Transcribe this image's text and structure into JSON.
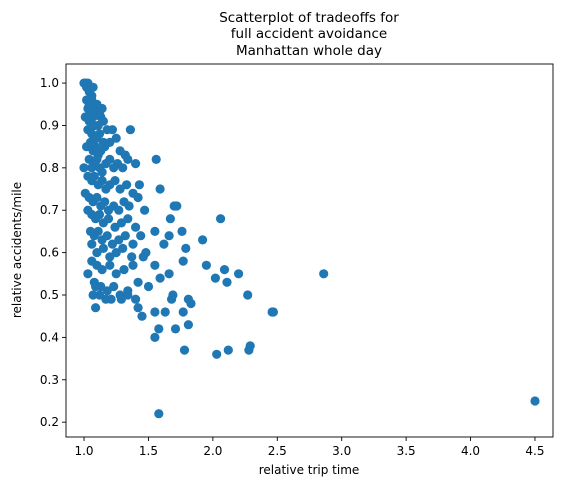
{
  "chart_data": {
    "type": "scatter",
    "title_lines": [
      "Scatterplot of tradeoffs for",
      "full accident avoidance",
      "Manhattan whole day"
    ],
    "xlabel": "relative trip time",
    "ylabel": "relative accidents/mile",
    "xlim": [
      0.86,
      4.64
    ],
    "ylim": [
      0.165,
      1.045
    ],
    "xticks": [
      1.0,
      1.5,
      2.0,
      2.5,
      3.0,
      3.5,
      4.0,
      4.5
    ],
    "xtick_labels": [
      "1.0",
      "1.5",
      "2.0",
      "2.5",
      "3.0",
      "3.5",
      "4.0",
      "4.5"
    ],
    "yticks": [
      0.2,
      0.3,
      0.4,
      0.5,
      0.6,
      0.7,
      0.8,
      0.9,
      1.0
    ],
    "ytick_labels": [
      "0.2",
      "0.3",
      "0.4",
      "0.5",
      "0.6",
      "0.7",
      "0.8",
      "0.9",
      "1.0"
    ],
    "grid": false,
    "marker_color": "#1f77b4",
    "points": [
      [
        1.0,
        1.0
      ],
      [
        1.01,
        1.0
      ],
      [
        1.02,
        0.99
      ],
      [
        1.03,
        1.0
      ],
      [
        1.04,
        0.98
      ],
      [
        1.05,
        0.99
      ],
      [
        1.06,
        0.97
      ],
      [
        1.07,
        0.99
      ],
      [
        1.02,
        0.96
      ],
      [
        1.03,
        0.94
      ],
      [
        1.04,
        0.95
      ],
      [
        1.05,
        0.93
      ],
      [
        1.06,
        0.96
      ],
      [
        1.08,
        0.95
      ],
      [
        1.09,
        0.94
      ],
      [
        1.1,
        0.95
      ],
      [
        1.12,
        0.93
      ],
      [
        1.13,
        0.92
      ],
      [
        1.14,
        0.94
      ],
      [
        1.15,
        0.91
      ],
      [
        1.01,
        0.92
      ],
      [
        1.04,
        0.91
      ],
      [
        1.07,
        0.92
      ],
      [
        1.11,
        0.9
      ],
      [
        1.03,
        0.89
      ],
      [
        1.06,
        0.88
      ],
      [
        1.08,
        0.9
      ],
      [
        1.1,
        0.87
      ],
      [
        1.12,
        0.88
      ],
      [
        1.15,
        0.86
      ],
      [
        1.18,
        0.89
      ],
      [
        1.22,
        0.89
      ],
      [
        1.02,
        0.85
      ],
      [
        1.05,
        0.86
      ],
      [
        1.07,
        0.84
      ],
      [
        1.09,
        0.85
      ],
      [
        1.11,
        0.83
      ],
      [
        1.13,
        0.84
      ],
      [
        1.16,
        0.85
      ],
      [
        1.2,
        0.86
      ],
      [
        1.25,
        0.87
      ],
      [
        1.28,
        0.84
      ],
      [
        1.32,
        0.83
      ],
      [
        1.36,
        0.89
      ],
      [
        1.04,
        0.82
      ],
      [
        1.06,
        0.8
      ],
      [
        1.08,
        0.81
      ],
      [
        1.1,
        0.82
      ],
      [
        1.12,
        0.8
      ],
      [
        1.14,
        0.79
      ],
      [
        1.17,
        0.81
      ],
      [
        1.2,
        0.82
      ],
      [
        1.23,
        0.8
      ],
      [
        1.26,
        0.81
      ],
      [
        1.3,
        0.8
      ],
      [
        1.34,
        0.82
      ],
      [
        1.4,
        0.81
      ],
      [
        1.56,
        0.82
      ],
      [
        1.0,
        0.8
      ],
      [
        1.03,
        0.78
      ],
      [
        1.06,
        0.77
      ],
      [
        1.08,
        0.78
      ],
      [
        1.11,
        0.76
      ],
      [
        1.14,
        0.77
      ],
      [
        1.17,
        0.75
      ],
      [
        1.2,
        0.76
      ],
      [
        1.24,
        0.77
      ],
      [
        1.28,
        0.75
      ],
      [
        1.33,
        0.76
      ],
      [
        1.38,
        0.74
      ],
      [
        1.43,
        0.76
      ],
      [
        1.01,
        0.74
      ],
      [
        1.04,
        0.73
      ],
      [
        1.07,
        0.72
      ],
      [
        1.1,
        0.73
      ],
      [
        1.13,
        0.71
      ],
      [
        1.16,
        0.72
      ],
      [
        1.19,
        0.7
      ],
      [
        1.23,
        0.71
      ],
      [
        1.27,
        0.7
      ],
      [
        1.31,
        0.72
      ],
      [
        1.35,
        0.71
      ],
      [
        1.42,
        0.73
      ],
      [
        1.59,
        0.75
      ],
      [
        1.03,
        0.7
      ],
      [
        1.06,
        0.69
      ],
      [
        1.09,
        0.68
      ],
      [
        1.12,
        0.69
      ],
      [
        1.15,
        0.67
      ],
      [
        1.19,
        0.68
      ],
      [
        1.24,
        0.66
      ],
      [
        1.29,
        0.67
      ],
      [
        1.34,
        0.68
      ],
      [
        1.4,
        0.66
      ],
      [
        1.47,
        0.7
      ],
      [
        1.7,
        0.71
      ],
      [
        1.72,
        0.71
      ],
      [
        1.67,
        0.68
      ],
      [
        2.06,
        0.68
      ],
      [
        1.05,
        0.65
      ],
      [
        1.08,
        0.64
      ],
      [
        1.11,
        0.65
      ],
      [
        1.14,
        0.63
      ],
      [
        1.18,
        0.64
      ],
      [
        1.22,
        0.62
      ],
      [
        1.27,
        0.63
      ],
      [
        1.32,
        0.64
      ],
      [
        1.38,
        0.62
      ],
      [
        1.44,
        0.64
      ],
      [
        1.55,
        0.65
      ],
      [
        1.66,
        0.64
      ],
      [
        1.76,
        0.65
      ],
      [
        1.92,
        0.63
      ],
      [
        1.06,
        0.62
      ],
      [
        1.1,
        0.6
      ],
      [
        1.15,
        0.61
      ],
      [
        1.2,
        0.59
      ],
      [
        1.25,
        0.6
      ],
      [
        1.3,
        0.61
      ],
      [
        1.37,
        0.59
      ],
      [
        1.48,
        0.6
      ],
      [
        1.62,
        0.62
      ],
      [
        1.79,
        0.61
      ],
      [
        1.06,
        0.58
      ],
      [
        1.1,
        0.57
      ],
      [
        1.14,
        0.56
      ],
      [
        1.2,
        0.57
      ],
      [
        1.25,
        0.55
      ],
      [
        1.31,
        0.56
      ],
      [
        1.38,
        0.57
      ],
      [
        1.46,
        0.59
      ],
      [
        1.55,
        0.57
      ],
      [
        1.66,
        0.55
      ],
      [
        1.77,
        0.58
      ],
      [
        1.95,
        0.57
      ],
      [
        2.09,
        0.56
      ],
      [
        2.2,
        0.55
      ],
      [
        1.03,
        0.55
      ],
      [
        1.08,
        0.53
      ],
      [
        1.13,
        0.52
      ],
      [
        1.18,
        0.51
      ],
      [
        1.23,
        0.52
      ],
      [
        1.28,
        0.5
      ],
      [
        1.34,
        0.51
      ],
      [
        1.42,
        0.53
      ],
      [
        1.5,
        0.52
      ],
      [
        1.59,
        0.54
      ],
      [
        1.69,
        0.5
      ],
      [
        1.81,
        0.49
      ],
      [
        2.02,
        0.54
      ],
      [
        2.11,
        0.53
      ],
      [
        2.27,
        0.5
      ],
      [
        2.86,
        0.55
      ],
      [
        1.07,
        0.5
      ],
      [
        1.12,
        0.5
      ],
      [
        1.17,
        0.49
      ],
      [
        1.21,
        0.49
      ],
      [
        1.29,
        0.49
      ],
      [
        1.34,
        0.5
      ],
      [
        1.42,
        0.47
      ],
      [
        1.55,
        0.46
      ],
      [
        1.68,
        0.49
      ],
      [
        1.83,
        0.48
      ],
      [
        1.77,
        0.46
      ],
      [
        2.46,
        0.46
      ],
      [
        2.47,
        0.46
      ],
      [
        1.09,
        0.47
      ],
      [
        1.63,
        0.46
      ],
      [
        1.71,
        0.42
      ],
      [
        1.58,
        0.42
      ],
      [
        1.55,
        0.4
      ],
      [
        1.81,
        0.43
      ],
      [
        1.78,
        0.37
      ],
      [
        2.03,
        0.36
      ],
      [
        2.12,
        0.37
      ],
      [
        2.28,
        0.37
      ],
      [
        2.29,
        0.38
      ],
      [
        1.58,
        0.22
      ],
      [
        4.5,
        0.25
      ],
      [
        1.09,
        0.52
      ],
      [
        1.4,
        0.49
      ],
      [
        1.45,
        0.45
      ]
    ]
  }
}
